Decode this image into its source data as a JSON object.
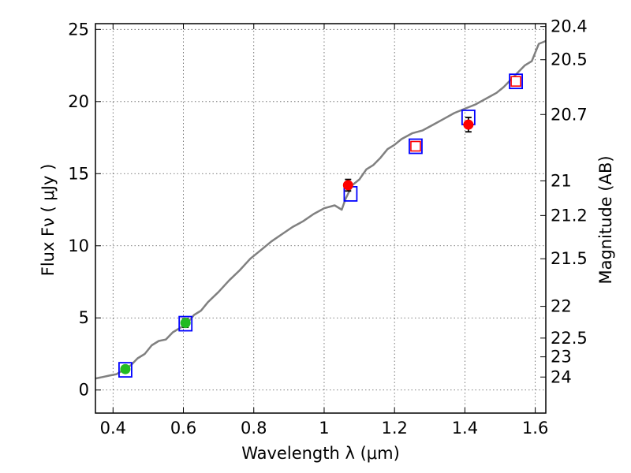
{
  "chart_data": {
    "type": "scatter",
    "xlabel": "Wavelength  λ (μm)",
    "ylabel": "Flux  Fν  ( μJy )",
    "y2label": "Magnitude (AB)",
    "xlim": [
      0.35,
      1.63
    ],
    "ylim": [
      -1.6,
      25.4
    ],
    "grid": true,
    "x_ticks": [
      0.4,
      0.6,
      0.8,
      1.0,
      1.2,
      1.4,
      1.6
    ],
    "x_tick_labels": [
      "0.4",
      "0.6",
      "0.8",
      "1",
      "1.2",
      "1.4",
      "1.6"
    ],
    "y_ticks": [
      0,
      5,
      10,
      15,
      20,
      25
    ],
    "y_tick_labels": [
      "0",
      "5",
      "10",
      "15",
      "20",
      "25"
    ],
    "y2_ticks": [
      {
        "label": "20.4",
        "flux": 25.2
      },
      {
        "label": "20.5",
        "flux": 22.9
      },
      {
        "label": "20.7",
        "flux": 19.1
      },
      {
        "label": "21",
        "flux": 14.5
      },
      {
        "label": "21.2",
        "flux": 12.1
      },
      {
        "label": "21.5",
        "flux": 9.1
      },
      {
        "label": "22",
        "flux": 5.8
      },
      {
        "label": "22.5",
        "flux": 3.6
      },
      {
        "label": "23",
        "flux": 2.3
      },
      {
        "label": "24",
        "flux": 0.9
      }
    ],
    "series": [
      {
        "kind": "spectrum",
        "color": "#808080",
        "x": [
          0.35,
          0.37,
          0.39,
          0.41,
          0.43,
          0.45,
          0.47,
          0.49,
          0.51,
          0.53,
          0.55,
          0.57,
          0.59,
          0.61,
          0.63,
          0.65,
          0.67,
          0.7,
          0.73,
          0.76,
          0.79,
          0.82,
          0.85,
          0.88,
          0.91,
          0.94,
          0.97,
          1.0,
          1.03,
          1.05,
          1.06,
          1.08,
          1.1,
          1.12,
          1.14,
          1.16,
          1.18,
          1.2,
          1.22,
          1.25,
          1.28,
          1.31,
          1.34,
          1.37,
          1.4,
          1.43,
          1.46,
          1.49,
          1.51,
          1.53,
          1.55,
          1.57,
          1.59,
          1.61,
          1.63
        ],
        "y": [
          0.8,
          0.9,
          1.0,
          1.1,
          1.4,
          1.7,
          2.2,
          2.5,
          3.1,
          3.4,
          3.5,
          4.0,
          4.3,
          4.6,
          5.2,
          5.5,
          6.1,
          6.8,
          7.6,
          8.3,
          9.1,
          9.7,
          10.3,
          10.8,
          11.3,
          11.7,
          12.2,
          12.6,
          12.8,
          12.5,
          13.2,
          14.2,
          14.6,
          15.3,
          15.6,
          16.1,
          16.7,
          17.0,
          17.4,
          17.8,
          18.0,
          18.4,
          18.8,
          19.2,
          19.5,
          19.8,
          20.2,
          20.6,
          21.0,
          21.5,
          22.0,
          22.5,
          22.8,
          24.0,
          24.2
        ]
      },
      {
        "kind": "model_photometry",
        "marker": "open-square",
        "color": "#0000ff",
        "x": [
          0.435,
          0.606,
          1.075,
          1.26,
          1.41,
          1.545
        ],
        "y": [
          1.4,
          4.6,
          13.6,
          16.9,
          18.9,
          21.4
        ]
      },
      {
        "kind": "observed",
        "marker": "circle",
        "color": "#22bb22",
        "x": [
          0.435,
          0.606
        ],
        "y": [
          1.45,
          4.65
        ],
        "yerr": [
          0.2,
          0.3
        ]
      },
      {
        "kind": "observed",
        "marker": "circle",
        "color": "#ff0000",
        "x": [
          1.068,
          1.41
        ],
        "y": [
          14.2,
          18.4
        ],
        "yerr": [
          0.4,
          0.5
        ]
      },
      {
        "kind": "upper-limit",
        "marker": "open-square",
        "color": "#ff0000",
        "x": [
          1.26,
          1.545
        ],
        "y": [
          16.9,
          21.4
        ]
      }
    ]
  }
}
